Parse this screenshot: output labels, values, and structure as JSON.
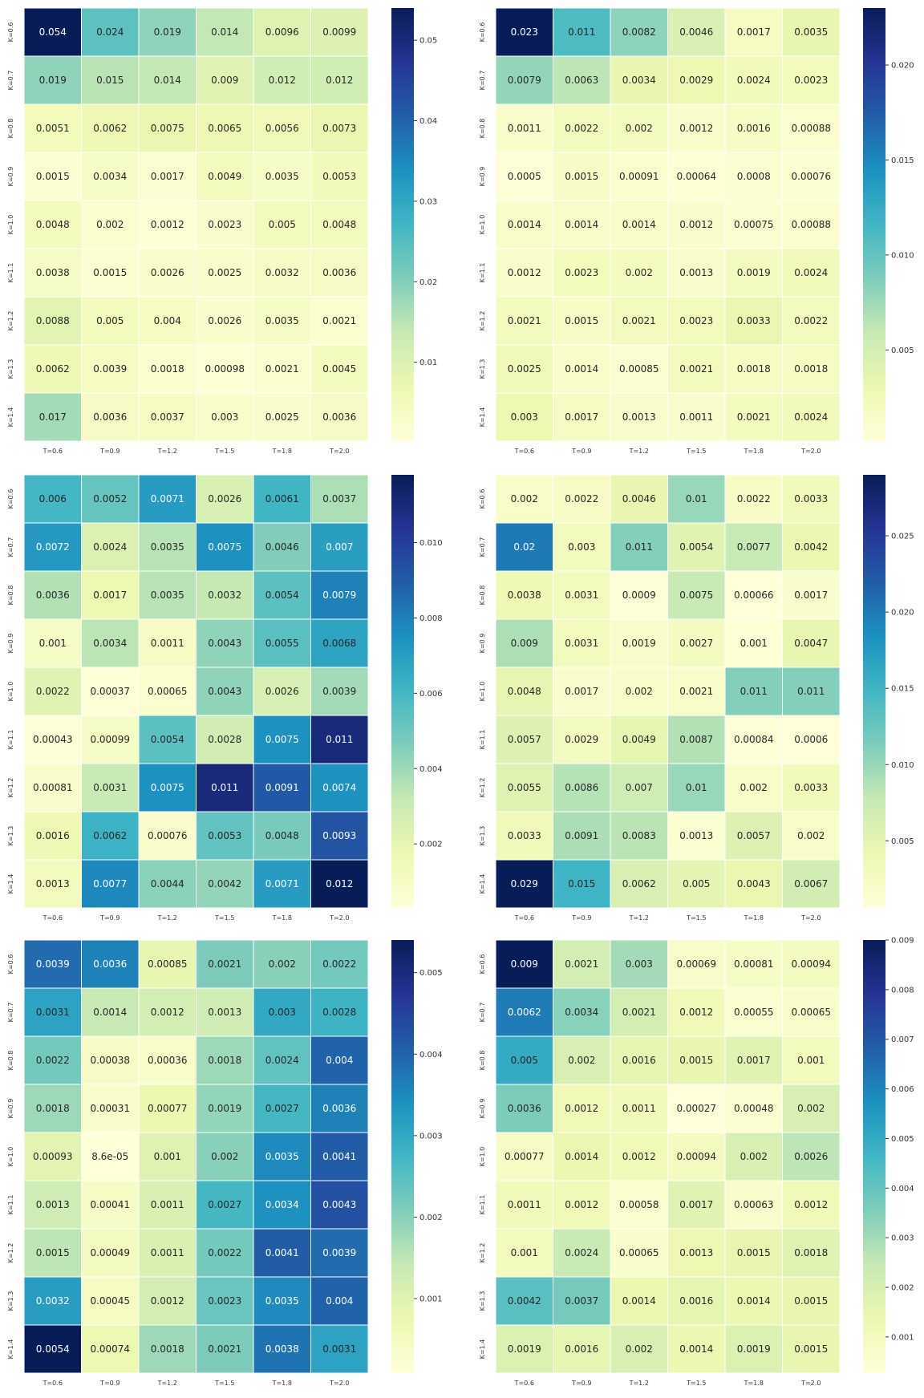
{
  "colormap": "YlGnBu",
  "chart_data": [
    {
      "type": "heatmap",
      "title": "",
      "x_labels": [
        "T=0.6",
        "T=0.9",
        "T=1.2",
        "T=1.5",
        "T=1.8",
        "T=2.0"
      ],
      "y_labels": [
        "K=0.6",
        "K=0.7",
        "K=0.8",
        "K=0.9",
        "K=1.0",
        "K=1.1",
        "K=1.2",
        "K=1.3",
        "K=1.4"
      ],
      "values": [
        [
          0.054,
          0.024,
          0.019,
          0.014,
          0.0096,
          0.0099
        ],
        [
          0.019,
          0.015,
          0.014,
          0.009,
          0.012,
          0.012
        ],
        [
          0.0051,
          0.0062,
          0.0075,
          0.0065,
          0.0056,
          0.0073
        ],
        [
          0.0015,
          0.0034,
          0.0017,
          0.0049,
          0.0035,
          0.0053
        ],
        [
          0.0048,
          0.002,
          0.0012,
          0.0023,
          0.005,
          0.0048
        ],
        [
          0.0038,
          0.0015,
          0.0026,
          0.0025,
          0.0032,
          0.0036
        ],
        [
          0.0088,
          0.005,
          0.004,
          0.0026,
          0.0035,
          0.0021
        ],
        [
          0.0062,
          0.0039,
          0.0018,
          0.00098,
          0.0021,
          0.0045
        ],
        [
          0.017,
          0.0036,
          0.0037,
          0.003,
          0.0025,
          0.0036
        ]
      ],
      "value_labels": [
        [
          "0.054",
          "0.024",
          "0.019",
          "0.014",
          "0.0096",
          "0.0099"
        ],
        [
          "0.019",
          "0.015",
          "0.014",
          "0.009",
          "0.012",
          "0.012"
        ],
        [
          "0.0051",
          "0.0062",
          "0.0075",
          "0.0065",
          "0.0056",
          "0.0073"
        ],
        [
          "0.0015",
          "0.0034",
          "0.0017",
          "0.0049",
          "0.0035",
          "0.0053"
        ],
        [
          "0.0048",
          "0.002",
          "0.0012",
          "0.0023",
          "0.005",
          "0.0048"
        ],
        [
          "0.0038",
          "0.0015",
          "0.0026",
          "0.0025",
          "0.0032",
          "0.0036"
        ],
        [
          "0.0088",
          "0.005",
          "0.004",
          "0.0026",
          "0.0035",
          "0.0021"
        ],
        [
          "0.0062",
          "0.0039",
          "0.0018",
          "0.00098",
          "0.0021",
          "0.0045"
        ],
        [
          "0.017",
          "0.0036",
          "0.0037",
          "0.003",
          "0.0025",
          "0.0036"
        ]
      ],
      "color_range": [
        0.0002,
        0.054
      ],
      "colorbar_ticks": [
        0.01,
        0.02,
        0.03,
        0.04,
        0.05
      ],
      "colorbar_tick_labels": [
        "0.01",
        "0.02",
        "0.03",
        "0.04",
        "0.05"
      ]
    },
    {
      "type": "heatmap",
      "title": "",
      "x_labels": [
        "T=0.6",
        "T=0.9",
        "T=1.2",
        "T=1.5",
        "T=1.8",
        "T=2.0"
      ],
      "y_labels": [
        "K=0.6",
        "K=0.7",
        "K=0.8",
        "K=0.9",
        "K=1.0",
        "K=1.1",
        "K=1.2",
        "K=1.3",
        "K=1.4"
      ],
      "values": [
        [
          0.023,
          0.011,
          0.0082,
          0.0046,
          0.0017,
          0.0035
        ],
        [
          0.0079,
          0.0063,
          0.0034,
          0.0029,
          0.0024,
          0.0023
        ],
        [
          0.0011,
          0.0022,
          0.002,
          0.0012,
          0.0016,
          0.00088
        ],
        [
          0.0005,
          0.0015,
          0.00091,
          0.00064,
          0.0008,
          0.00076
        ],
        [
          0.0014,
          0.0014,
          0.0014,
          0.0012,
          0.00075,
          0.00088
        ],
        [
          0.0012,
          0.0023,
          0.002,
          0.0013,
          0.0019,
          0.0024
        ],
        [
          0.0021,
          0.0015,
          0.0021,
          0.0023,
          0.0033,
          0.0022
        ],
        [
          0.0025,
          0.0014,
          0.00085,
          0.0021,
          0.0018,
          0.0018
        ],
        [
          0.003,
          0.0017,
          0.0013,
          0.0011,
          0.0021,
          0.0024
        ]
      ],
      "value_labels": [
        [
          "0.023",
          "0.011",
          "0.0082",
          "0.0046",
          "0.0017",
          "0.0035"
        ],
        [
          "0.0079",
          "0.0063",
          "0.0034",
          "0.0029",
          "0.0024",
          "0.0023"
        ],
        [
          "0.0011",
          "0.0022",
          "0.002",
          "0.0012",
          "0.0016",
          "0.00088"
        ],
        [
          "0.0005",
          "0.0015",
          "0.00091",
          "0.00064",
          "0.0008",
          "0.00076"
        ],
        [
          "0.0014",
          "0.0014",
          "0.0014",
          "0.0012",
          "0.00075",
          "0.00088"
        ],
        [
          "0.0012",
          "0.0023",
          "0.002",
          "0.0013",
          "0.0019",
          "0.0024"
        ],
        [
          "0.0021",
          "0.0015",
          "0.0021",
          "0.0023",
          "0.0033",
          "0.0022"
        ],
        [
          "0.0025",
          "0.0014",
          "0.00085",
          "0.0021",
          "0.0018",
          "0.0018"
        ],
        [
          "0.003",
          "0.0017",
          "0.0013",
          "0.0011",
          "0.0021",
          "0.0024"
        ]
      ],
      "color_range": [
        0.0002,
        0.023
      ],
      "colorbar_ticks": [
        0.005,
        0.01,
        0.015,
        0.02
      ],
      "colorbar_tick_labels": [
        "0.005",
        "0.010",
        "0.015",
        "0.020"
      ]
    },
    {
      "type": "heatmap",
      "title": "",
      "x_labels": [
        "T=0.6",
        "T=0.9",
        "T=1.2",
        "T=1.5",
        "T=1.8",
        "T=2.0"
      ],
      "y_labels": [
        "K=0.6",
        "K=0.7",
        "K=0.8",
        "K=0.9",
        "K=1.0",
        "K=1.1",
        "K=1.2",
        "K=1.3",
        "K=1.4"
      ],
      "values": [
        [
          0.006,
          0.0052,
          0.0071,
          0.0026,
          0.0061,
          0.0037
        ],
        [
          0.0072,
          0.0024,
          0.0035,
          0.0075,
          0.0046,
          0.007
        ],
        [
          0.0036,
          0.0017,
          0.0035,
          0.0032,
          0.0054,
          0.0079
        ],
        [
          0.001,
          0.0034,
          0.0011,
          0.0043,
          0.0055,
          0.0068
        ],
        [
          0.0022,
          0.00037,
          0.00065,
          0.0043,
          0.0026,
          0.0039
        ],
        [
          0.00043,
          0.00099,
          0.0054,
          0.0028,
          0.0075,
          0.011
        ],
        [
          0.00081,
          0.0031,
          0.0075,
          0.011,
          0.0091,
          0.0074
        ],
        [
          0.0016,
          0.0062,
          0.00076,
          0.0053,
          0.0048,
          0.0093
        ],
        [
          0.0013,
          0.0077,
          0.0044,
          0.0042,
          0.0071,
          0.012
        ]
      ],
      "value_labels": [
        [
          "0.006",
          "0.0052",
          "0.0071",
          "0.0026",
          "0.0061",
          "0.0037"
        ],
        [
          "0.0072",
          "0.0024",
          "0.0035",
          "0.0075",
          "0.0046",
          "0.007"
        ],
        [
          "0.0036",
          "0.0017",
          "0.0035",
          "0.0032",
          "0.0054",
          "0.0079"
        ],
        [
          "0.001",
          "0.0034",
          "0.0011",
          "0.0043",
          "0.0055",
          "0.0068"
        ],
        [
          "0.0022",
          "0.00037",
          "0.00065",
          "0.0043",
          "0.0026",
          "0.0039"
        ],
        [
          "0.00043",
          "0.00099",
          "0.0054",
          "0.0028",
          "0.0075",
          "0.011"
        ],
        [
          "0.00081",
          "0.0031",
          "0.0075",
          "0.011",
          "0.0091",
          "0.0074"
        ],
        [
          "0.0016",
          "0.0062",
          "0.00076",
          "0.0053",
          "0.0048",
          "0.0093"
        ],
        [
          "0.0013",
          "0.0077",
          "0.0044",
          "0.0042",
          "0.0071",
          "0.012"
        ]
      ],
      "color_range": [
        0.0003,
        0.0118
      ],
      "colorbar_ticks": [
        0.002,
        0.004,
        0.006,
        0.008,
        0.01
      ],
      "colorbar_tick_labels": [
        "0.002",
        "0.004",
        "0.006",
        "0.008",
        "0.010"
      ]
    },
    {
      "type": "heatmap",
      "title": "",
      "x_labels": [
        "T=0.6",
        "T=0.9",
        "T=1.2",
        "T=1.5",
        "T=1.8",
        "T=2.0"
      ],
      "y_labels": [
        "K=0.6",
        "K=0.7",
        "K=0.8",
        "K=0.9",
        "K=1.0",
        "K=1.1",
        "K=1.2",
        "K=1.3",
        "K=1.4"
      ],
      "values": [
        [
          0.002,
          0.0022,
          0.0046,
          0.01,
          0.0022,
          0.0033
        ],
        [
          0.02,
          0.003,
          0.011,
          0.0054,
          0.0077,
          0.0042
        ],
        [
          0.0038,
          0.0031,
          0.0009,
          0.0075,
          0.00066,
          0.0017
        ],
        [
          0.009,
          0.0031,
          0.0019,
          0.0027,
          0.001,
          0.0047
        ],
        [
          0.0048,
          0.0017,
          0.002,
          0.0021,
          0.011,
          0.011
        ],
        [
          0.0057,
          0.0029,
          0.0049,
          0.0087,
          0.00084,
          0.0006
        ],
        [
          0.0055,
          0.0086,
          0.007,
          0.01,
          0.002,
          0.0033
        ],
        [
          0.0033,
          0.0091,
          0.0083,
          0.0013,
          0.0057,
          0.002
        ],
        [
          0.029,
          0.015,
          0.0062,
          0.005,
          0.0043,
          0.0067
        ]
      ],
      "value_labels": [
        [
          "0.002",
          "0.0022",
          "0.0046",
          "0.01",
          "0.0022",
          "0.0033"
        ],
        [
          "0.02",
          "0.003",
          "0.011",
          "0.0054",
          "0.0077",
          "0.0042"
        ],
        [
          "0.0038",
          "0.0031",
          "0.0009",
          "0.0075",
          "0.00066",
          "0.0017"
        ],
        [
          "0.009",
          "0.0031",
          "0.0019",
          "0.0027",
          "0.001",
          "0.0047"
        ],
        [
          "0.0048",
          "0.0017",
          "0.002",
          "0.0021",
          "0.011",
          "0.011"
        ],
        [
          "0.0057",
          "0.0029",
          "0.0049",
          "0.0087",
          "0.00084",
          "0.0006"
        ],
        [
          "0.0055",
          "0.0086",
          "0.007",
          "0.01",
          "0.002",
          "0.0033"
        ],
        [
          "0.0033",
          "0.0091",
          "0.0083",
          "0.0013",
          "0.0057",
          "0.002"
        ],
        [
          "0.029",
          "0.015",
          "0.0062",
          "0.005",
          "0.0043",
          "0.0067"
        ]
      ],
      "color_range": [
        0.0006,
        0.029
      ],
      "colorbar_ticks": [
        0.005,
        0.01,
        0.015,
        0.02,
        0.025
      ],
      "colorbar_tick_labels": [
        "0.005",
        "0.010",
        "0.015",
        "0.020",
        "0.025"
      ]
    },
    {
      "type": "heatmap",
      "title": "",
      "x_labels": [
        "T=0.6",
        "T=0.9",
        "T=1.2",
        "T=1.5",
        "T=1.8",
        "T=2.0"
      ],
      "y_labels": [
        "K=0.6",
        "K=0.7",
        "K=0.8",
        "K=0.9",
        "K=1.0",
        "K=1.1",
        "K=1.2",
        "K=1.3",
        "K=1.4"
      ],
      "values": [
        [
          0.0039,
          0.0036,
          0.00085,
          0.0021,
          0.002,
          0.0022
        ],
        [
          0.0031,
          0.0014,
          0.0012,
          0.0013,
          0.003,
          0.0028
        ],
        [
          0.0022,
          0.00038,
          0.00036,
          0.0018,
          0.0024,
          0.004
        ],
        [
          0.0018,
          0.00031,
          0.00077,
          0.0019,
          0.0027,
          0.0036
        ],
        [
          0.00093,
          8.6e-05,
          0.001,
          0.002,
          0.0035,
          0.0041
        ],
        [
          0.0013,
          0.00041,
          0.0011,
          0.0027,
          0.0034,
          0.0043
        ],
        [
          0.0015,
          0.00049,
          0.0011,
          0.0022,
          0.0041,
          0.0039
        ],
        [
          0.0032,
          0.00045,
          0.0012,
          0.0023,
          0.0035,
          0.004
        ],
        [
          0.0054,
          0.00074,
          0.0018,
          0.0021,
          0.0038,
          0.0031
        ]
      ],
      "value_labels": [
        [
          "0.0039",
          "0.0036",
          "0.00085",
          "0.0021",
          "0.002",
          "0.0022"
        ],
        [
          "0.0031",
          "0.0014",
          "0.0012",
          "0.0013",
          "0.003",
          "0.0028"
        ],
        [
          "0.0022",
          "0.00038",
          "0.00036",
          "0.0018",
          "0.0024",
          "0.004"
        ],
        [
          "0.0018",
          "0.00031",
          "0.00077",
          "0.0019",
          "0.0027",
          "0.0036"
        ],
        [
          "0.00093",
          "8.6e-05",
          "0.001",
          "0.002",
          "0.0035",
          "0.0041"
        ],
        [
          "0.0013",
          "0.00041",
          "0.0011",
          "0.0027",
          "0.0034",
          "0.0043"
        ],
        [
          "0.0015",
          "0.00049",
          "0.0011",
          "0.0022",
          "0.0041",
          "0.0039"
        ],
        [
          "0.0032",
          "0.00045",
          "0.0012",
          "0.0023",
          "0.0035",
          "0.004"
        ],
        [
          "0.0054",
          "0.00074",
          "0.0018",
          "0.0021",
          "0.0038",
          "0.0031"
        ]
      ],
      "color_range": [
        8.6e-05,
        0.0054
      ],
      "colorbar_ticks": [
        0.001,
        0.002,
        0.003,
        0.004,
        0.005
      ],
      "colorbar_tick_labels": [
        "0.001",
        "0.002",
        "0.003",
        "0.004",
        "0.005"
      ]
    },
    {
      "type": "heatmap",
      "title": "",
      "x_labels": [
        "T=0.6",
        "T=0.9",
        "T=1.2",
        "T=1.5",
        "T=1.8",
        "T=2.0"
      ],
      "y_labels": [
        "K=0.6",
        "K=0.7",
        "K=0.8",
        "K=0.9",
        "K=1.0",
        "K=1.1",
        "K=1.2",
        "K=1.3",
        "K=1.4"
      ],
      "values": [
        [
          0.009,
          0.0021,
          0.003,
          0.00069,
          0.00081,
          0.00094
        ],
        [
          0.0062,
          0.0034,
          0.0021,
          0.0012,
          0.00055,
          0.00065
        ],
        [
          0.005,
          0.002,
          0.0016,
          0.0015,
          0.0017,
          0.001
        ],
        [
          0.0036,
          0.0012,
          0.0011,
          0.00027,
          0.00048,
          0.002
        ],
        [
          0.00077,
          0.0014,
          0.0012,
          0.00094,
          0.002,
          0.0026
        ],
        [
          0.0011,
          0.0012,
          0.00058,
          0.0017,
          0.00063,
          0.0012
        ],
        [
          0.001,
          0.0024,
          0.00065,
          0.0013,
          0.0015,
          0.0018
        ],
        [
          0.0042,
          0.0037,
          0.0014,
          0.0016,
          0.0014,
          0.0015
        ],
        [
          0.0019,
          0.0016,
          0.002,
          0.0014,
          0.0019,
          0.0015
        ]
      ],
      "value_labels": [
        [
          "0.009",
          "0.0021",
          "0.003",
          "0.00069",
          "0.00081",
          "0.00094"
        ],
        [
          "0.0062",
          "0.0034",
          "0.0021",
          "0.0012",
          "0.00055",
          "0.00065"
        ],
        [
          "0.005",
          "0.002",
          "0.0016",
          "0.0015",
          "0.0017",
          "0.001"
        ],
        [
          "0.0036",
          "0.0012",
          "0.0011",
          "0.00027",
          "0.00048",
          "0.002"
        ],
        [
          "0.00077",
          "0.0014",
          "0.0012",
          "0.00094",
          "0.002",
          "0.0026"
        ],
        [
          "0.0011",
          "0.0012",
          "0.00058",
          "0.0017",
          "0.00063",
          "0.0012"
        ],
        [
          "0.001",
          "0.0024",
          "0.00065",
          "0.0013",
          "0.0015",
          "0.0018"
        ],
        [
          "0.0042",
          "0.0037",
          "0.0014",
          "0.0016",
          "0.0014",
          "0.0015"
        ],
        [
          "0.0019",
          "0.0016",
          "0.002",
          "0.0014",
          "0.0019",
          "0.0015"
        ]
      ],
      "color_range": [
        0.00027,
        0.009
      ],
      "colorbar_ticks": [
        0.001,
        0.002,
        0.003,
        0.004,
        0.005,
        0.006,
        0.007,
        0.008,
        0.009
      ],
      "colorbar_tick_labels": [
        "0.001",
        "0.002",
        "0.003",
        "0.004",
        "0.005",
        "0.006",
        "0.007",
        "0.008",
        "0.009"
      ]
    }
  ]
}
